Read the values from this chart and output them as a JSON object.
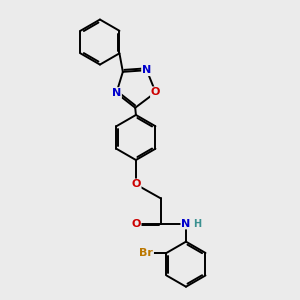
{
  "bg_color": "#ebebeb",
  "bond_color": "#000000",
  "bond_width": 1.4,
  "atom_colors": {
    "N": "#0000cc",
    "O": "#cc0000",
    "Br": "#bb7700",
    "NH_color": "#3a9090"
  },
  "font_size": 8,
  "fig_size": [
    3.0,
    3.0
  ],
  "dpi": 100
}
